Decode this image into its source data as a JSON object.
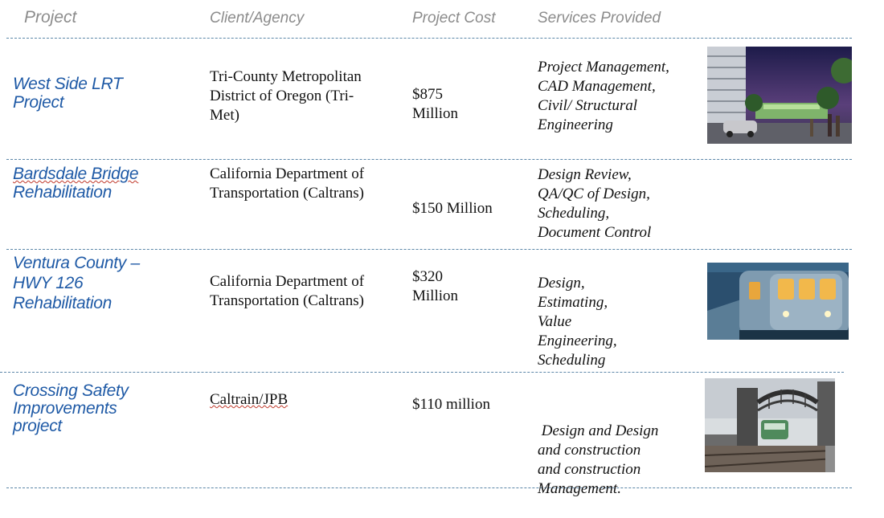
{
  "headers": {
    "project": "Project",
    "client": "Client/Agency",
    "cost": "Project Cost",
    "services": "Services Provided"
  },
  "rows": [
    {
      "project": [
        "West Side LRT",
        "Project"
      ],
      "client": [
        "Tri-County Metropolitan",
        "District of Oregon (Tri-",
        "Met)"
      ],
      "cost": [
        "$875",
        "Million"
      ],
      "services": [
        "Project Management,",
        "CAD Management,",
        "Civil/ Structural",
        "Engineering"
      ],
      "image": "light-rail-station-photo"
    },
    {
      "project": [
        "Bardsdale Bridge",
        "Rehabilitation"
      ],
      "client": [
        "California Department of",
        "Transportation (Caltrans)"
      ],
      "cost": [
        "$150 Million"
      ],
      "services": [
        "Design Review,",
        "QA/QC of Design,",
        "Scheduling,",
        "Document Control"
      ]
    },
    {
      "project": [
        "Ventura County –",
        "HWY 126",
        "Rehabilitation"
      ],
      "client": [
        "California Department of",
        "Transportation (Caltrans)"
      ],
      "cost": [
        "$320",
        "Million"
      ],
      "services": [
        "Design,",
        "Estimating,",
        "Value",
        "Engineering,",
        "Scheduling"
      ],
      "image": "commuter-train-illustration"
    },
    {
      "project": [
        "Crossing Safety",
        "Improvements",
        "project"
      ],
      "client": [
        "Caltrain/JPB"
      ],
      "cost": [
        "$110 million"
      ],
      "services": [
        " Design and Design",
        "and construction",
        "and construction",
        "Management."
      ],
      "image": "rail-bridge-photo"
    }
  ]
}
